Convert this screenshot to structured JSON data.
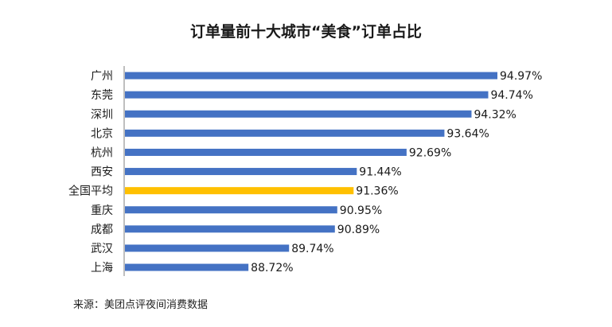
{
  "chart_data": {
    "type": "bar",
    "orientation": "horizontal",
    "title": "订单量前十大城市“美食”订单占比",
    "categories": [
      "广州",
      "东莞",
      "深圳",
      "北京",
      "杭州",
      "西安",
      "全国平均",
      "重庆",
      "成都",
      "武汉",
      "上海"
    ],
    "values": [
      94.97,
      94.74,
      94.32,
      93.64,
      92.69,
      91.44,
      91.36,
      90.95,
      90.89,
      89.74,
      88.72
    ],
    "value_labels": [
      "94.97%",
      "94.74%",
      "94.32%",
      "93.64%",
      "92.69%",
      "91.44%",
      "91.36%",
      "90.95%",
      "90.89%",
      "89.74%",
      "88.72%"
    ],
    "unit": "%",
    "highlight_category": "全国平均",
    "colors": {
      "bar": "#4472C4",
      "highlight": "#FFC000",
      "axis": "#7f7f7f",
      "text": "#1a1a1a"
    },
    "xlabel": "",
    "ylabel": "",
    "grid": false,
    "legend": "none"
  },
  "footer": {
    "source": "来源：美团点评夜间消费数据"
  }
}
